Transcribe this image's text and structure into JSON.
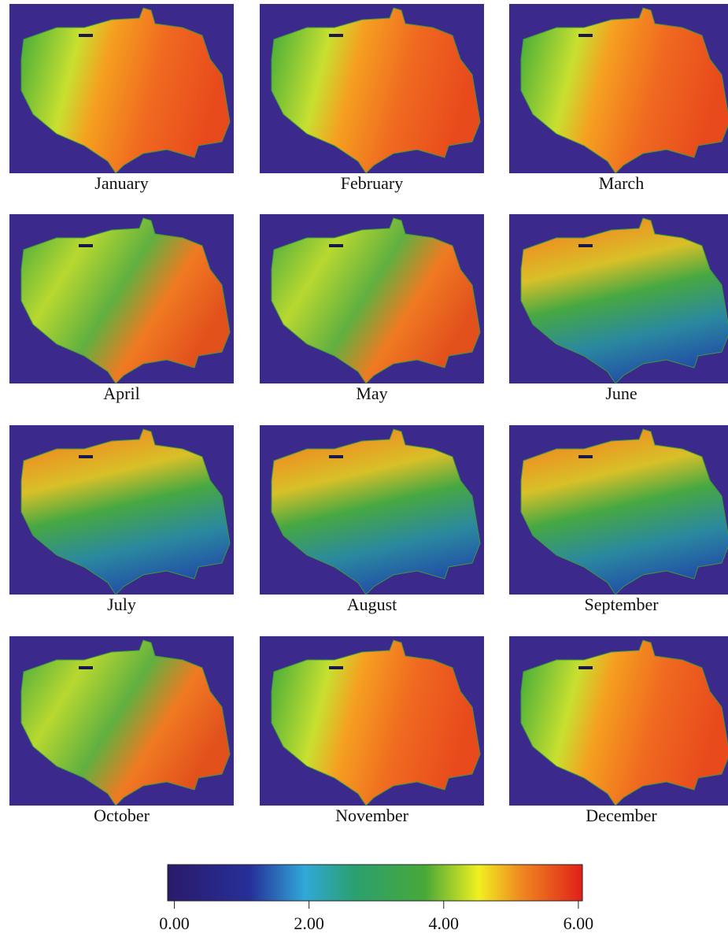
{
  "panels": [
    {
      "label": "January"
    },
    {
      "label": "February"
    },
    {
      "label": "March"
    },
    {
      "label": "April"
    },
    {
      "label": "May"
    },
    {
      "label": "June"
    },
    {
      "label": "July"
    },
    {
      "label": "August"
    },
    {
      "label": "September"
    },
    {
      "label": "October"
    },
    {
      "label": "November"
    },
    {
      "label": "December"
    }
  ],
  "colorbar": {
    "lim": [
      -0.1,
      6.06
    ],
    "ticks": [
      {
        "value": 0,
        "label": "0.00"
      },
      {
        "value": 2,
        "label": "2.00"
      },
      {
        "value": 4,
        "label": "4.00"
      },
      {
        "value": 6,
        "label": "6.00"
      }
    ]
  }
}
